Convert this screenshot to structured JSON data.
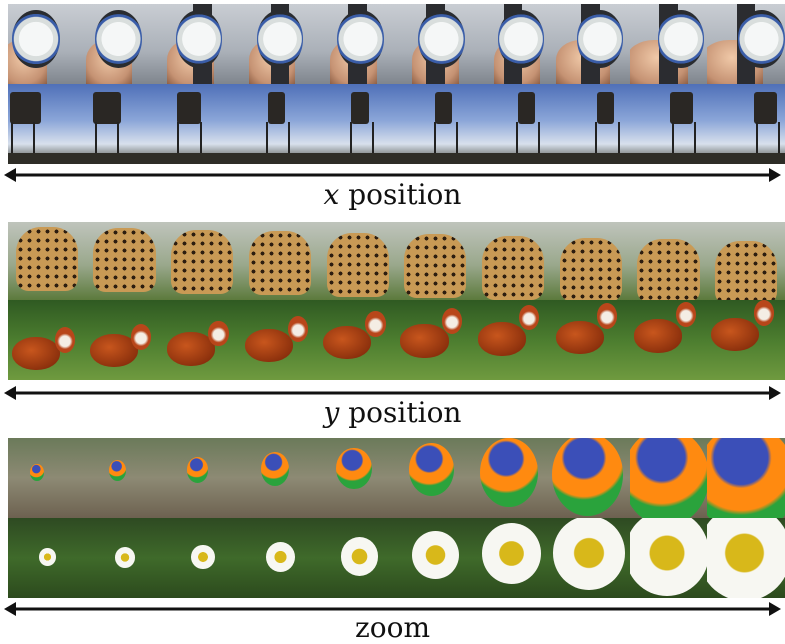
{
  "labels": {
    "x_var": "x",
    "x_word": " position",
    "y_var": "y",
    "y_word": " position",
    "zoom": "zoom"
  },
  "rows": [
    {
      "name": "wristwatch",
      "tiles": 10
    },
    {
      "name": "water-tower",
      "tiles": 10
    },
    {
      "name": "leopard",
      "tiles": 10
    },
    {
      "name": "red-panda",
      "tiles": 10
    },
    {
      "name": "lorikeet",
      "tiles": 10
    },
    {
      "name": "daisy",
      "tiles": 10
    }
  ],
  "colors": {
    "arrow": "#111111",
    "watch_bezel": "#3a5da8",
    "panda_fur": "#b8461a",
    "daisy_center": "#d8b81a"
  }
}
